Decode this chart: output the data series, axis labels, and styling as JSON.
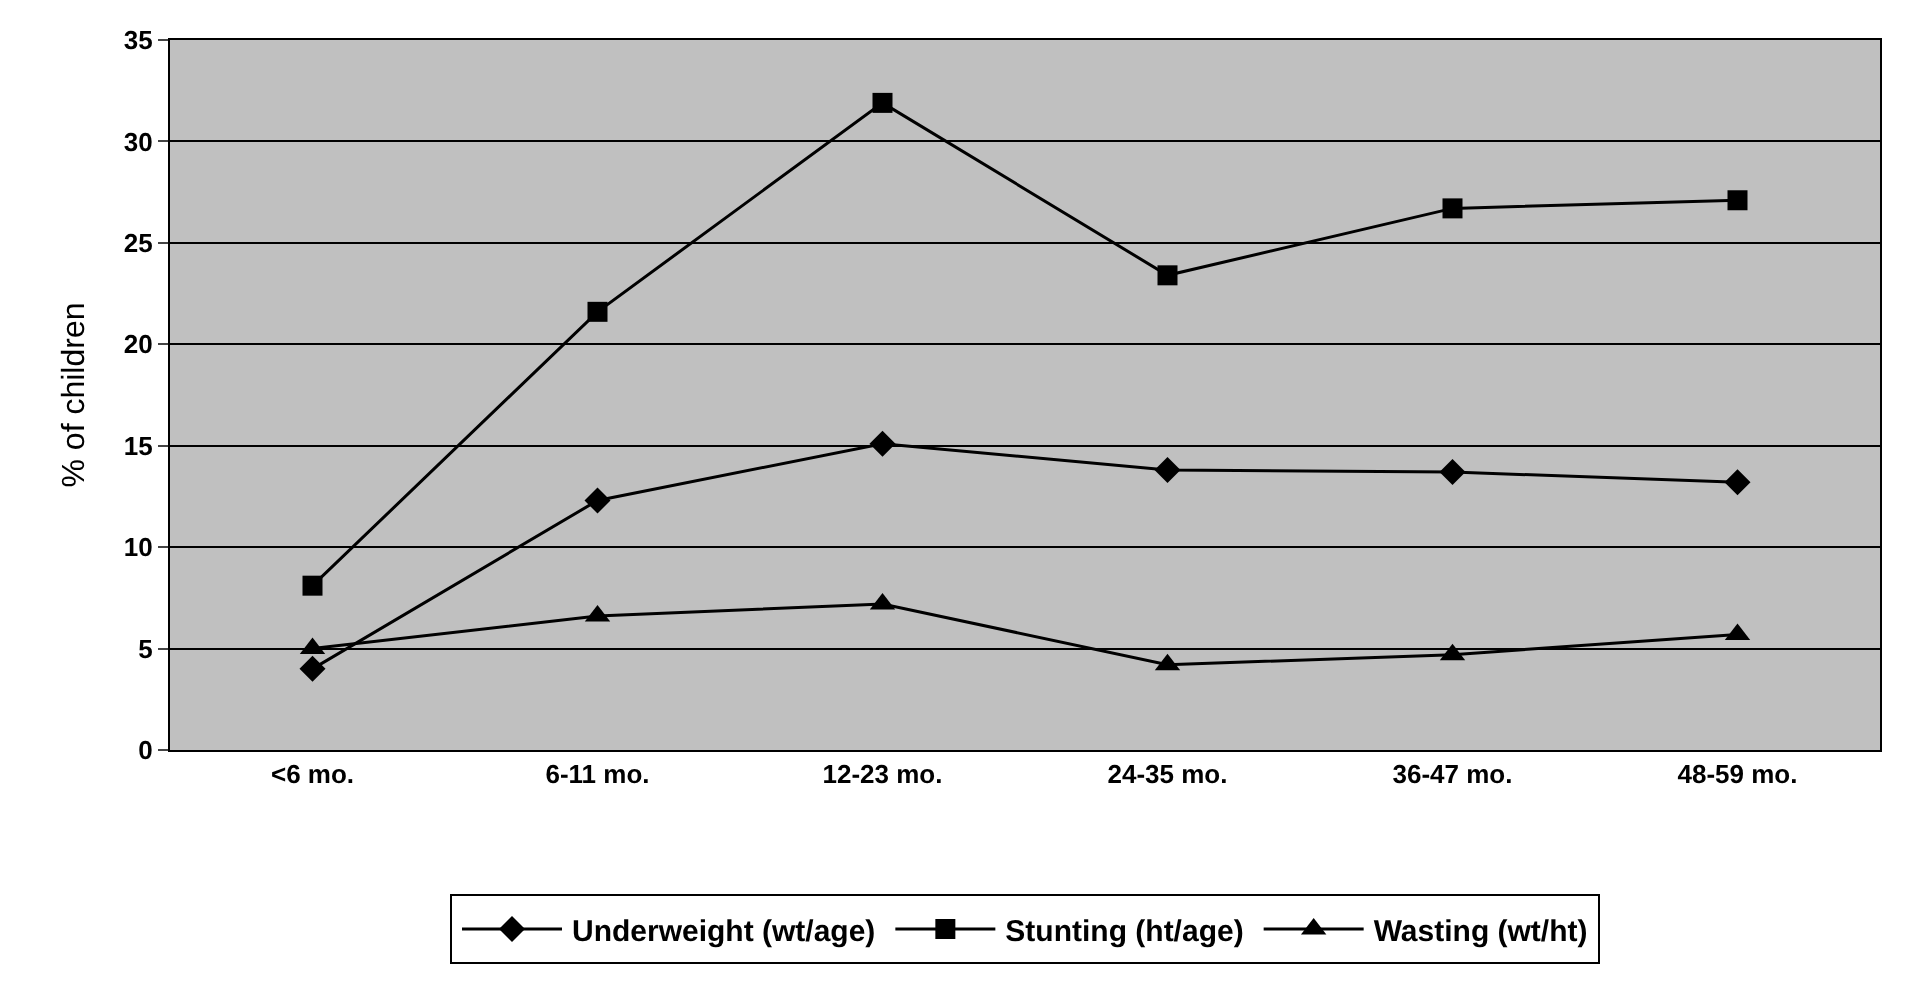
{
  "chart_data": {
    "type": "line",
    "ylabel": "% of children",
    "categories": [
      "<6 mo.",
      "6-11 mo.",
      "12-23 mo.",
      "24-35 mo.",
      "36-47 mo.",
      "48-59 mo."
    ],
    "series": [
      {
        "name": "Underweight (wt/age)",
        "color": "#000000",
        "marker": "diamond",
        "values": [
          4.0,
          12.3,
          15.1,
          13.8,
          13.7,
          13.2
        ]
      },
      {
        "name": "Stunting (ht/age)",
        "color": "#000000",
        "marker": "square",
        "values": [
          8.1,
          21.6,
          31.9,
          23.4,
          26.7,
          27.1
        ]
      },
      {
        "name": "Wasting (wt/ht)",
        "color": "#000000",
        "marker": "triangle",
        "values": [
          5.0,
          6.6,
          7.2,
          4.2,
          4.7,
          5.7
        ]
      }
    ],
    "ylim": [
      0,
      35
    ],
    "yticks": [
      0,
      5,
      10,
      15,
      20,
      25,
      30,
      35
    ],
    "grid": "y",
    "legend": "bottom",
    "line_style": "solid"
  }
}
